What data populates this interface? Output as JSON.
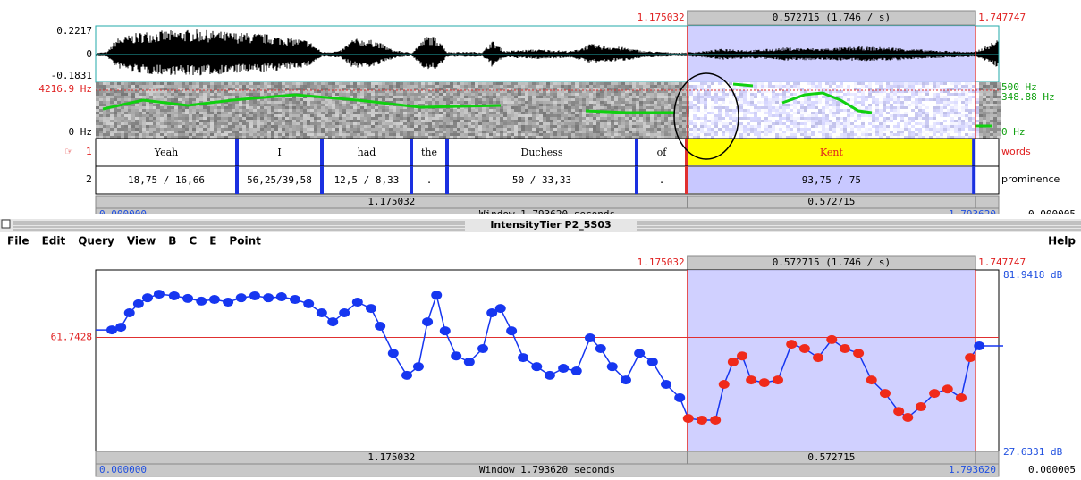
{
  "sound_editor": {
    "selection_start": "1.175032",
    "selection_duration": "0.572715 (1.746 / s)",
    "selection_end": "1.747747",
    "amplitude_max": "0.2217",
    "amplitude_zero": "0",
    "amplitude_min": "-0.1831",
    "spectrum_max": "4216.9 Hz",
    "spectrum_min": "0 Hz",
    "pitch_max": "500 Hz",
    "pitch_cursor": "348.88 Hz",
    "pitch_min": "0 Hz",
    "tier_marker": "☞",
    "tiers": [
      {
        "number": "1",
        "name": "words",
        "intervals": [
          "Yeah",
          "I",
          "had",
          "the",
          "Duchess",
          "of",
          "Kent"
        ]
      },
      {
        "number": "2",
        "name": "prominence",
        "intervals": [
          "18,75 / 16,66",
          "56,25/39,58",
          "12,5 / 8,33",
          ".",
          "50 / 33,33",
          ".",
          "93,75 / 75"
        ]
      }
    ],
    "bottom_left": "1.175032",
    "bottom_right": "0.572715",
    "window_start": "0.000000",
    "window_label": "Window 1.793620 seconds",
    "window_end": "1.793620",
    "extra": "0.000005"
  },
  "window_title": "IntensityTier P2_5S03",
  "menu": [
    "File",
    "Edit",
    "Query",
    "View",
    "B",
    "C",
    "E",
    "Point"
  ],
  "help": "Help",
  "intensity_editor": {
    "selection_start": "1.175032",
    "selection_duration": "0.572715 (1.746 / s)",
    "selection_end": "1.747747",
    "cursor_value": "61.7428",
    "intensity_max": "81.9418 dB",
    "intensity_min": "27.6331 dB",
    "point_color": "#1636f0",
    "selected_point_color": "#f02a1a",
    "times": [
      0.032,
      0.05,
      0.067,
      0.085,
      0.103,
      0.126,
      0.156,
      0.183,
      0.21,
      0.236,
      0.263,
      0.289,
      0.316,
      0.343,
      0.369,
      0.396,
      0.423,
      0.449,
      0.471,
      0.494,
      0.52,
      0.547,
      0.565,
      0.591,
      0.618,
      0.641,
      0.659,
      0.677,
      0.694,
      0.716,
      0.742,
      0.769,
      0.787,
      0.804,
      0.826,
      0.849,
      0.876,
      0.902,
      0.929,
      0.955,
      0.982,
      1.003,
      1.026,
      1.053,
      1.08,
      1.106,
      1.133,
      1.16,
      1.177,
      1.204,
      1.231,
      1.248,
      1.266,
      1.284,
      1.302,
      1.328,
      1.355,
      1.382,
      1.408,
      1.435,
      1.462,
      1.488,
      1.515,
      1.541,
      1.568,
      1.595,
      1.613,
      1.639,
      1.666,
      1.692,
      1.719,
      1.737,
      1.755
    ],
    "values": [
      64.0,
      64.8,
      69.1,
      71.8,
      73.6,
      74.7,
      74.2,
      73.4,
      72.6,
      73.1,
      72.3,
      73.6,
      74.2,
      73.6,
      73.9,
      73.1,
      71.8,
      69.1,
      66.4,
      69.1,
      72.3,
      70.4,
      65.1,
      57.0,
      50.4,
      53.0,
      66.4,
      74.4,
      63.7,
      56.2,
      54.4,
      58.4,
      69.1,
      70.4,
      63.7,
      55.7,
      53.0,
      50.4,
      52.5,
      51.7,
      61.6,
      58.4,
      53.0,
      49.0,
      57.0,
      54.4,
      47.7,
      43.7,
      37.5,
      37.0,
      37.0,
      47.7,
      54.4,
      56.2,
      49.0,
      48.2,
      49.0,
      59.7,
      58.4,
      55.7,
      61.1,
      58.4,
      57.0,
      49.0,
      45.0,
      39.6,
      37.8,
      41.0,
      45.0,
      46.3,
      43.7,
      55.7,
      59.2
    ],
    "bottom_left": "1.175032",
    "bottom_right": "0.572715",
    "window_start": "0.000000",
    "window_label": "Window 1.793620 seconds",
    "window_end": "1.793620",
    "extra": "0.000005"
  }
}
